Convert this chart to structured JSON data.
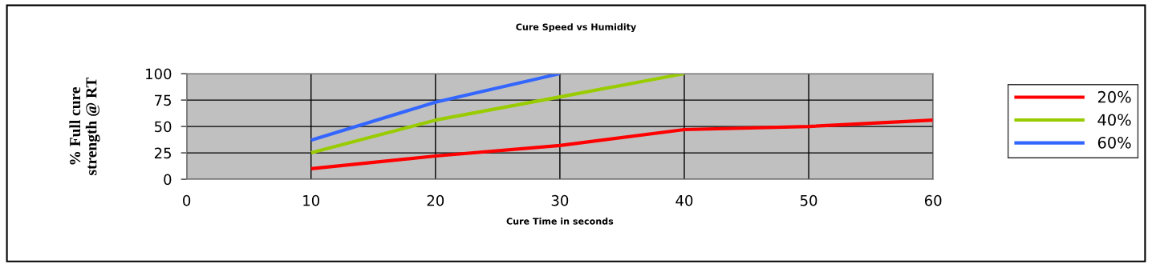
{
  "chart_data": {
    "type": "line",
    "title": "Cure Speed vs Humidity",
    "xlabel": "Cure Time in seconds",
    "ylabel": "% Full cure\nstrength @ RT",
    "x": [
      10,
      20,
      30,
      40,
      50,
      60
    ],
    "series": [
      {
        "name": "20%",
        "color": "#ff0000",
        "values": [
          10,
          22,
          32,
          47,
          50,
          56
        ]
      },
      {
        "name": "40%",
        "color": "#99cc00",
        "values": [
          25,
          56,
          78,
          100,
          null,
          null
        ]
      },
      {
        "name": "60%",
        "color": "#3366ff",
        "values": [
          37,
          73,
          100,
          null,
          null,
          null
        ]
      }
    ],
    "xlim": [
      0,
      60
    ],
    "xticks": [
      0,
      10,
      20,
      30,
      40,
      50,
      60
    ],
    "ylim": [
      0,
      100
    ],
    "yticks": [
      0,
      25,
      50,
      75,
      100
    ],
    "grid": true,
    "legend": "right",
    "marker": "none",
    "line_style": "solid"
  }
}
